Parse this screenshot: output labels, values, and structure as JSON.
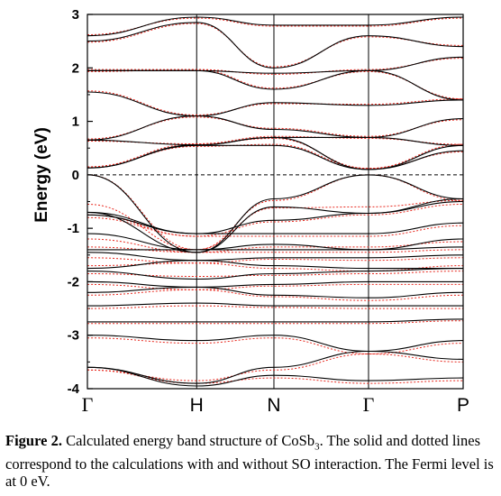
{
  "chart_data": {
    "type": "line",
    "title": "",
    "ylabel": "Energy (eV)",
    "xlabel": "",
    "ylim": [
      -4,
      3
    ],
    "yticks": [
      -4,
      -3,
      -2,
      -1,
      0,
      1,
      2,
      3
    ],
    "k_points": [
      "Γ",
      "H",
      "N",
      "Γ",
      "P"
    ],
    "k_positions": [
      0,
      1,
      1.707,
      2.573,
      3.439
    ],
    "fermi_level": 0,
    "legend": "none",
    "grid": false,
    "series": [
      {
        "style": "solid",
        "color": "#000000",
        "bands": [
          [
            0.13,
            0.55,
            0.55,
            0.1,
            0.45
          ],
          [
            0.13,
            0.56,
            0.7,
            0.1,
            0.55
          ],
          [
            0.65,
            0.56,
            0.7,
            0.7,
            0.55
          ],
          [
            0.65,
            1.1,
            0.85,
            0.7,
            1.05
          ],
          [
            1.55,
            1.1,
            1.35,
            1.3,
            1.4
          ],
          [
            1.95,
            1.95,
            1.6,
            1.95,
            1.4
          ],
          [
            1.95,
            1.95,
            1.9,
            1.95,
            2.2
          ],
          [
            2.5,
            2.85,
            2.0,
            2.6,
            2.4
          ],
          [
            2.6,
            2.95,
            2.8,
            2.8,
            2.95
          ],
          [
            0.0,
            -1.45,
            -0.45,
            0.0,
            -0.45
          ],
          [
            -0.7,
            -1.45,
            -0.6,
            -0.72,
            -0.45
          ],
          [
            -0.7,
            -1.1,
            -0.85,
            -0.72,
            -0.5
          ],
          [
            -0.75,
            -1.1,
            -1.1,
            -1.1,
            -0.9
          ],
          [
            -1.1,
            -1.4,
            -1.3,
            -1.4,
            -1.2
          ],
          [
            -1.4,
            -1.4,
            -1.4,
            -1.4,
            -1.35
          ],
          [
            -1.45,
            -1.6,
            -1.55,
            -1.55,
            -1.5
          ],
          [
            -1.75,
            -1.6,
            -1.7,
            -1.75,
            -1.75
          ],
          [
            -1.8,
            -1.95,
            -1.85,
            -1.8,
            -1.75
          ],
          [
            -2.0,
            -2.1,
            -2.05,
            -2.0,
            -2.0
          ],
          [
            -2.2,
            -2.1,
            -2.25,
            -2.3,
            -2.2
          ],
          [
            -2.45,
            -2.4,
            -2.45,
            -2.45,
            -2.45
          ],
          [
            -2.75,
            -2.75,
            -2.75,
            -2.75,
            -2.7
          ],
          [
            -3.0,
            -3.1,
            -3.0,
            -3.3,
            -3.1
          ],
          [
            -3.6,
            -3.9,
            -3.6,
            -3.3,
            -3.45
          ],
          [
            -3.6,
            -3.95,
            -3.75,
            -3.85,
            -3.8
          ]
        ]
      },
      {
        "style": "dotted",
        "color": "#e8281e",
        "bands": [
          [
            0.15,
            0.53,
            0.57,
            0.12,
            0.43
          ],
          [
            0.15,
            0.58,
            0.68,
            0.12,
            0.57
          ],
          [
            0.63,
            0.58,
            0.72,
            0.68,
            0.57
          ],
          [
            0.67,
            1.08,
            0.87,
            0.72,
            1.03
          ],
          [
            1.57,
            1.12,
            1.33,
            1.32,
            1.42
          ],
          [
            1.93,
            1.97,
            1.62,
            1.93,
            1.42
          ],
          [
            1.97,
            1.97,
            1.88,
            1.97,
            2.18
          ],
          [
            2.48,
            2.83,
            2.02,
            2.58,
            2.42
          ],
          [
            2.62,
            2.93,
            2.78,
            2.78,
            2.93
          ],
          [
            0.0,
            -1.4,
            -0.48,
            0.0,
            -0.48
          ],
          [
            -0.55,
            -1.4,
            -0.62,
            -0.6,
            -0.48
          ],
          [
            -0.75,
            -1.15,
            -0.88,
            -0.75,
            -0.55
          ],
          [
            -0.8,
            -1.15,
            -1.15,
            -1.15,
            -0.95
          ],
          [
            -1.2,
            -1.45,
            -1.35,
            -1.35,
            -1.25
          ],
          [
            -1.35,
            -1.45,
            -1.45,
            -1.45,
            -1.4
          ],
          [
            -1.55,
            -1.65,
            -1.58,
            -1.6,
            -1.55
          ],
          [
            -1.7,
            -1.65,
            -1.75,
            -1.8,
            -1.7
          ],
          [
            -1.85,
            -1.9,
            -1.88,
            -1.85,
            -1.8
          ],
          [
            -2.05,
            -2.15,
            -2.08,
            -2.05,
            -2.05
          ],
          [
            -2.25,
            -2.15,
            -2.28,
            -2.35,
            -2.25
          ],
          [
            -2.5,
            -2.45,
            -2.48,
            -2.5,
            -2.5
          ],
          [
            -2.78,
            -2.78,
            -2.78,
            -2.78,
            -2.73
          ],
          [
            -3.05,
            -3.15,
            -3.05,
            -3.35,
            -3.15
          ],
          [
            -3.65,
            -3.85,
            -3.65,
            -3.35,
            -3.5
          ],
          [
            -3.65,
            -3.9,
            -3.8,
            -3.9,
            -3.85
          ]
        ]
      }
    ]
  },
  "caption": {
    "label": "Figure 2.",
    "text_before_sub": " Calculated energy band structure of CoSb",
    "subscript": "3",
    "text_after_sub": ".  The solid and dotted lines correspond to the calculations with and without SO interaction. The Fermi level is at 0 eV."
  }
}
